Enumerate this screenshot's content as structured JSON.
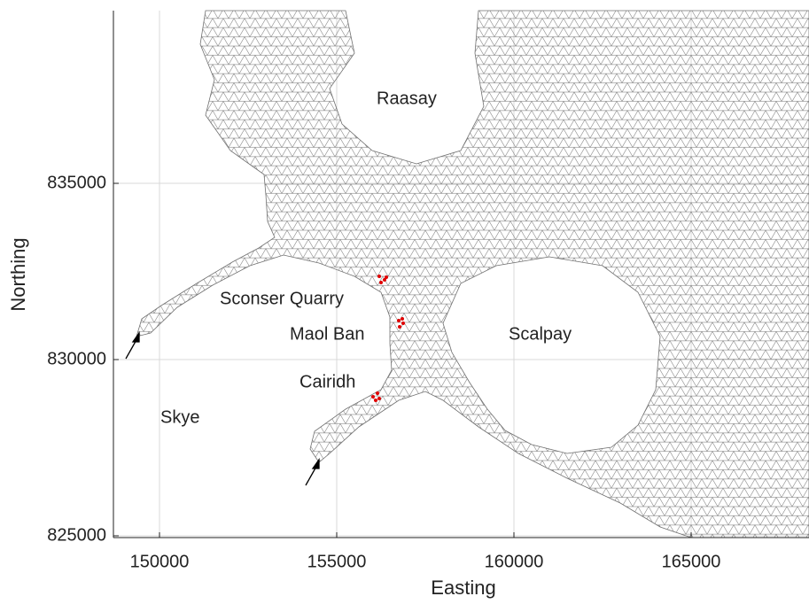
{
  "chart_data": {
    "type": "mesh",
    "xlabel": "Easting",
    "ylabel": "Northing",
    "xlim": [
      148700,
      168325
    ],
    "ylim": [
      824950,
      839900
    ],
    "xticks": [
      150000,
      155000,
      160000,
      165000
    ],
    "yticks": [
      825000,
      830000,
      835000
    ],
    "grid": true,
    "annotations": [
      "Raasay",
      "Sconser Quarry",
      "Maol Ban",
      "Scalpay",
      "Cairidh",
      "Skye"
    ],
    "mesh_color": "#707070",
    "site_color": "#e00000"
  }
}
